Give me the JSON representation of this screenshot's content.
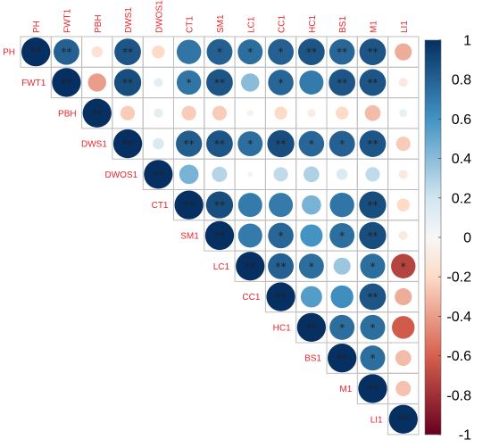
{
  "chart_data": {
    "type": "heatmap",
    "subtype": "correlation-matrix-upper-circles",
    "variables": [
      "PH",
      "FWT1",
      "PBH",
      "DWS1",
      "DWOS1",
      "CT1",
      "SM1",
      "LC1",
      "CC1",
      "HC1",
      "BS1",
      "M1",
      "LI1"
    ],
    "cells": [
      {
        "row": "PH",
        "col": "PH",
        "r": 1.0,
        "sig": "**"
      },
      {
        "row": "PH",
        "col": "FWT1",
        "r": 0.8,
        "sig": "**"
      },
      {
        "row": "PH",
        "col": "PBH",
        "r": -0.15,
        "sig": ""
      },
      {
        "row": "PH",
        "col": "DWS1",
        "r": 0.85,
        "sig": "**"
      },
      {
        "row": "PH",
        "col": "DWOS1",
        "r": -0.2,
        "sig": ""
      },
      {
        "row": "PH",
        "col": "CT1",
        "r": 0.72,
        "sig": ""
      },
      {
        "row": "PH",
        "col": "SM1",
        "r": 0.8,
        "sig": "*"
      },
      {
        "row": "PH",
        "col": "LC1",
        "r": 0.75,
        "sig": "*"
      },
      {
        "row": "PH",
        "col": "CC1",
        "r": 0.8,
        "sig": "*"
      },
      {
        "row": "PH",
        "col": "HC1",
        "r": 0.85,
        "sig": "**"
      },
      {
        "row": "PH",
        "col": "BS1",
        "r": 0.78,
        "sig": "**"
      },
      {
        "row": "PH",
        "col": "M1",
        "r": 0.85,
        "sig": "**"
      },
      {
        "row": "PH",
        "col": "LI1",
        "r": -0.35,
        "sig": ""
      },
      {
        "row": "FWT1",
        "col": "FWT1",
        "r": 1.0,
        "sig": "**"
      },
      {
        "row": "FWT1",
        "col": "PBH",
        "r": -0.4,
        "sig": ""
      },
      {
        "row": "FWT1",
        "col": "DWS1",
        "r": 0.88,
        "sig": "**"
      },
      {
        "row": "FWT1",
        "col": "DWOS1",
        "r": 0.1,
        "sig": ""
      },
      {
        "row": "FWT1",
        "col": "CT1",
        "r": 0.72,
        "sig": "*"
      },
      {
        "row": "FWT1",
        "col": "SM1",
        "r": 0.85,
        "sig": "**"
      },
      {
        "row": "FWT1",
        "col": "LC1",
        "r": 0.4,
        "sig": ""
      },
      {
        "row": "FWT1",
        "col": "CC1",
        "r": 0.78,
        "sig": "*"
      },
      {
        "row": "FWT1",
        "col": "HC1",
        "r": 0.7,
        "sig": ""
      },
      {
        "row": "FWT1",
        "col": "BS1",
        "r": 0.85,
        "sig": "**"
      },
      {
        "row": "FWT1",
        "col": "M1",
        "r": 0.85,
        "sig": "**"
      },
      {
        "row": "FWT1",
        "col": "LI1",
        "r": -0.1,
        "sig": ""
      },
      {
        "row": "PBH",
        "col": "PBH",
        "r": 1.0,
        "sig": "**"
      },
      {
        "row": "PBH",
        "col": "DWS1",
        "r": -0.25,
        "sig": ""
      },
      {
        "row": "PBH",
        "col": "DWOS1",
        "r": 0.1,
        "sig": ""
      },
      {
        "row": "PBH",
        "col": "CT1",
        "r": -0.25,
        "sig": ""
      },
      {
        "row": "PBH",
        "col": "SM1",
        "r": -0.25,
        "sig": ""
      },
      {
        "row": "PBH",
        "col": "LC1",
        "r": -0.05,
        "sig": ""
      },
      {
        "row": "PBH",
        "col": "CC1",
        "r": -0.2,
        "sig": ""
      },
      {
        "row": "PBH",
        "col": "HC1",
        "r": -0.08,
        "sig": ""
      },
      {
        "row": "PBH",
        "col": "BS1",
        "r": -0.2,
        "sig": ""
      },
      {
        "row": "PBH",
        "col": "M1",
        "r": -0.3,
        "sig": ""
      },
      {
        "row": "PBH",
        "col": "LI1",
        "r": 0.08,
        "sig": ""
      },
      {
        "row": "DWS1",
        "col": "DWS1",
        "r": 1.0,
        "sig": "**"
      },
      {
        "row": "DWS1",
        "col": "DWOS1",
        "r": 0.15,
        "sig": ""
      },
      {
        "row": "DWS1",
        "col": "CT1",
        "r": 0.82,
        "sig": "**"
      },
      {
        "row": "DWS1",
        "col": "SM1",
        "r": 0.85,
        "sig": "**"
      },
      {
        "row": "DWS1",
        "col": "LC1",
        "r": 0.75,
        "sig": "*"
      },
      {
        "row": "DWS1",
        "col": "CC1",
        "r": 0.88,
        "sig": "**"
      },
      {
        "row": "DWS1",
        "col": "HC1",
        "r": 0.78,
        "sig": "*"
      },
      {
        "row": "DWS1",
        "col": "BS1",
        "r": 0.8,
        "sig": "*"
      },
      {
        "row": "DWS1",
        "col": "M1",
        "r": 0.85,
        "sig": "**"
      },
      {
        "row": "DWS1",
        "col": "LI1",
        "r": -0.25,
        "sig": ""
      },
      {
        "row": "DWOS1",
        "col": "DWOS1",
        "r": 1.0,
        "sig": "**"
      },
      {
        "row": "DWOS1",
        "col": "CT1",
        "r": 0.45,
        "sig": ""
      },
      {
        "row": "DWOS1",
        "col": "SM1",
        "r": 0.28,
        "sig": ""
      },
      {
        "row": "DWOS1",
        "col": "LC1",
        "r": 0.03,
        "sig": ""
      },
      {
        "row": "DWOS1",
        "col": "CC1",
        "r": 0.25,
        "sig": ""
      },
      {
        "row": "DWOS1",
        "col": "HC1",
        "r": 0.3,
        "sig": ""
      },
      {
        "row": "DWOS1",
        "col": "BS1",
        "r": 0.15,
        "sig": ""
      },
      {
        "row": "DWOS1",
        "col": "M1",
        "r": 0.25,
        "sig": ""
      },
      {
        "row": "DWOS1",
        "col": "LI1",
        "r": -0.1,
        "sig": ""
      },
      {
        "row": "CT1",
        "col": "CT1",
        "r": 1.0,
        "sig": "**"
      },
      {
        "row": "CT1",
        "col": "SM1",
        "r": 0.88,
        "sig": "**"
      },
      {
        "row": "CT1",
        "col": "LC1",
        "r": 0.7,
        "sig": ""
      },
      {
        "row": "CT1",
        "col": "CC1",
        "r": 0.7,
        "sig": ""
      },
      {
        "row": "CT1",
        "col": "HC1",
        "r": 0.45,
        "sig": ""
      },
      {
        "row": "CT1",
        "col": "BS1",
        "r": 0.72,
        "sig": ""
      },
      {
        "row": "CT1",
        "col": "M1",
        "r": 0.88,
        "sig": "**"
      },
      {
        "row": "CT1",
        "col": "LI1",
        "r": -0.2,
        "sig": ""
      },
      {
        "row": "SM1",
        "col": "SM1",
        "r": 1.0,
        "sig": "**"
      },
      {
        "row": "SM1",
        "col": "LC1",
        "r": 0.7,
        "sig": ""
      },
      {
        "row": "SM1",
        "col": "CC1",
        "r": 0.78,
        "sig": "*"
      },
      {
        "row": "SM1",
        "col": "HC1",
        "r": 0.6,
        "sig": ""
      },
      {
        "row": "SM1",
        "col": "BS1",
        "r": 0.75,
        "sig": "*"
      },
      {
        "row": "SM1",
        "col": "M1",
        "r": 0.88,
        "sig": "**"
      },
      {
        "row": "SM1",
        "col": "LI1",
        "r": -0.1,
        "sig": ""
      },
      {
        "row": "LC1",
        "col": "LC1",
        "r": 1.0,
        "sig": "**"
      },
      {
        "row": "LC1",
        "col": "CC1",
        "r": 0.8,
        "sig": "**"
      },
      {
        "row": "LC1",
        "col": "HC1",
        "r": 0.75,
        "sig": "*"
      },
      {
        "row": "LC1",
        "col": "BS1",
        "r": 0.35,
        "sig": ""
      },
      {
        "row": "LC1",
        "col": "M1",
        "r": 0.75,
        "sig": "*"
      },
      {
        "row": "LC1",
        "col": "LI1",
        "r": -0.72,
        "sig": "*"
      },
      {
        "row": "CC1",
        "col": "CC1",
        "r": 1.0,
        "sig": "**"
      },
      {
        "row": "CC1",
        "col": "HC1",
        "r": 0.55,
        "sig": ""
      },
      {
        "row": "CC1",
        "col": "BS1",
        "r": 0.62,
        "sig": ""
      },
      {
        "row": "CC1",
        "col": "M1",
        "r": 0.85,
        "sig": "**"
      },
      {
        "row": "CC1",
        "col": "LI1",
        "r": -0.35,
        "sig": ""
      },
      {
        "row": "HC1",
        "col": "HC1",
        "r": 1.0,
        "sig": "**"
      },
      {
        "row": "HC1",
        "col": "BS1",
        "r": 0.75,
        "sig": "*"
      },
      {
        "row": "HC1",
        "col": "M1",
        "r": 0.75,
        "sig": "*"
      },
      {
        "row": "HC1",
        "col": "LI1",
        "r": -0.62,
        "sig": ""
      },
      {
        "row": "BS1",
        "col": "BS1",
        "r": 1.0,
        "sig": "**"
      },
      {
        "row": "BS1",
        "col": "M1",
        "r": 0.75,
        "sig": "*"
      },
      {
        "row": "BS1",
        "col": "LI1",
        "r": -0.3,
        "sig": ""
      },
      {
        "row": "M1",
        "col": "M1",
        "r": 1.0,
        "sig": "**"
      },
      {
        "row": "M1",
        "col": "LI1",
        "r": -0.28,
        "sig": ""
      },
      {
        "row": "LI1",
        "col": "LI1",
        "r": 1.0,
        "sig": "**"
      }
    ],
    "colorbar": {
      "range": [
        -1,
        1
      ],
      "ticks": [
        "1",
        "0.8",
        "0.6",
        "0.4",
        "0.2",
        "0",
        "-0.2",
        "-0.4",
        "-0.6",
        "-0.8",
        "-1"
      ]
    },
    "palette": {
      "neg_strong": "#67001f",
      "neg_mid": "#d6604d",
      "neg_light": "#fddbc7",
      "neutral": "#f7f7f7",
      "pos_light": "#d1e5f0",
      "pos_mid": "#4393c3",
      "pos_strong": "#053061"
    },
    "label_color": "#e8242a"
  }
}
